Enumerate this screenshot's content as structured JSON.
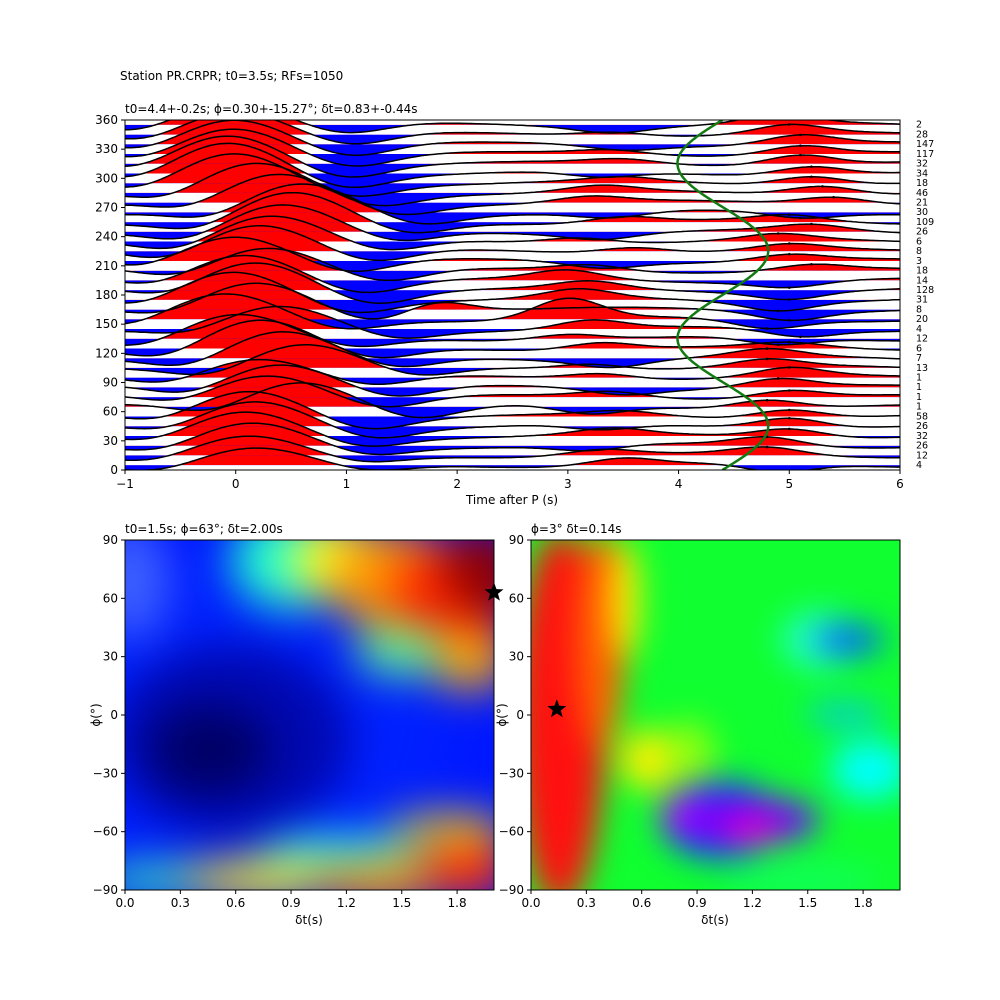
{
  "figure": {
    "suptitle": "Station PR.CRPR; t0=3.5s; RFs=1050"
  },
  "chart_data": [
    {
      "id": "top",
      "type": "line",
      "subtitle": "t0=4.4+-0.2s; ϕ=0.30+-15.27°; δt=0.83+-0.44s",
      "xlabel": "Time after P (s)",
      "xlim": [
        -1,
        6
      ],
      "ylim": [
        0,
        360
      ],
      "xticks": [
        -1,
        0,
        1,
        2,
        3,
        4,
        5,
        6
      ],
      "yticks": [
        0,
        30,
        60,
        90,
        120,
        150,
        180,
        210,
        240,
        270,
        300,
        330,
        360
      ],
      "traces": [
        {
          "baz": 5,
          "count": "4",
          "p1": 0.15,
          "a1": 0.55,
          "p2": 3.5,
          "a2": 0.25,
          "p3": 4.9,
          "a3": -0.3
        },
        {
          "baz": 15,
          "count": "12",
          "p1": 0.1,
          "a1": 0.6,
          "p2": 3.3,
          "a2": 0.2,
          "p3": 4.8,
          "a3": 0.25
        },
        {
          "baz": 25,
          "count": "26",
          "p1": 0.15,
          "a1": 0.7,
          "p2": 3.2,
          "a2": -0.2,
          "p3": 4.8,
          "a3": 0.3
        },
        {
          "baz": 35,
          "count": "32",
          "p1": 0.1,
          "a1": 0.75,
          "p2": 3.4,
          "a2": 0.2,
          "p3": 5.0,
          "a3": 0.3
        },
        {
          "baz": 45,
          "count": "26",
          "p1": 0.2,
          "a1": 0.8,
          "p2": 3.3,
          "a2": -0.2,
          "p3": 5.0,
          "a3": 0.35
        },
        {
          "baz": 55,
          "count": "58",
          "p1": 0.15,
          "a1": 0.85,
          "p2": 3.5,
          "a2": 0.15,
          "p3": 5.0,
          "a3": 0.3
        },
        {
          "baz": 65,
          "count": "1",
          "p1": 0.6,
          "a1": 0.9,
          "p2": 3.2,
          "a2": -0.3,
          "p3": 4.8,
          "a3": 0.3
        },
        {
          "baz": 75,
          "count": "1",
          "p1": 0.3,
          "a1": 0.8,
          "p2": 3.4,
          "a2": 0.2,
          "p3": 5.0,
          "a3": 0.25
        },
        {
          "baz": 85,
          "count": "1",
          "p1": 0.4,
          "a1": 0.85,
          "p2": 3.5,
          "a2": -0.2,
          "p3": 4.9,
          "a3": 0.3
        },
        {
          "baz": 95,
          "count": "1",
          "p1": 0.2,
          "a1": 0.7,
          "p2": 3.3,
          "a2": 0.2,
          "p3": 5.0,
          "a3": 0.3
        },
        {
          "baz": 105,
          "count": "13",
          "p1": 0.6,
          "a1": 0.8,
          "p2": 3.2,
          "a2": 0.2,
          "p3": 4.8,
          "a3": 0.25
        },
        {
          "baz": 115,
          "count": "7",
          "p1": 0.4,
          "a1": 0.9,
          "p2": 3.4,
          "a2": -0.25,
          "p3": 4.8,
          "a3": 0.25
        },
        {
          "baz": 125,
          "count": "6",
          "p1": 0.2,
          "a1": 0.95,
          "p2": 3.3,
          "a2": 0.25,
          "p3": 5.0,
          "a3": 0.15
        },
        {
          "baz": 135,
          "count": "12",
          "p1": 0.0,
          "a1": 0.8,
          "p2": 3.0,
          "a2": 0.2,
          "p3": 4.9,
          "a3": -0.25
        },
        {
          "baz": 145,
          "count": "4",
          "p1": 0.4,
          "a1": 0.7,
          "p2": 3.2,
          "a2": 0.3,
          "p3": 5.1,
          "a3": -0.25
        },
        {
          "baz": 155,
          "count": "20",
          "p1": -0.1,
          "a1": 0.8,
          "p2": 3.0,
          "a2": 0.7,
          "p3": 4.8,
          "a3": -0.3
        },
        {
          "baz": 165,
          "count": "8",
          "p1": 0.2,
          "a1": 0.85,
          "p2": 1.8,
          "a2": 0.4,
          "p3": 5.0,
          "a3": -0.3
        },
        {
          "baz": 175,
          "count": "31",
          "p1": 0.0,
          "a1": 0.9,
          "p2": 3.1,
          "a2": 0.3,
          "p3": 4.9,
          "a3": -0.3
        },
        {
          "baz": 185,
          "count": "128",
          "p1": 0.2,
          "a1": 0.95,
          "p2": 3.2,
          "a2": 0.25,
          "p3": 5.0,
          "a3": -0.25
        },
        {
          "baz": 195,
          "count": "14",
          "p1": 0.1,
          "a1": 0.9,
          "p2": 3.0,
          "a2": 0.3,
          "p3": 5.0,
          "a3": -0.2
        },
        {
          "baz": 205,
          "count": "18",
          "p1": 0.3,
          "a1": 0.85,
          "p2": 3.2,
          "a2": 0.2,
          "p3": 5.2,
          "a3": 0.2
        },
        {
          "baz": 215,
          "count": "3",
          "p1": 0.0,
          "a1": 0.9,
          "p2": 3.3,
          "a2": -0.2,
          "p3": 5.0,
          "a3": 0.2
        },
        {
          "baz": 225,
          "count": "8",
          "p1": 0.2,
          "a1": 0.95,
          "p2": 3.6,
          "a2": 0.2,
          "p3": 5.0,
          "a3": 0.2
        },
        {
          "baz": 235,
          "count": "6",
          "p1": 0.3,
          "a1": 0.9,
          "p2": 3.1,
          "a2": 0.2,
          "p3": 4.9,
          "a3": 0.2
        },
        {
          "baz": 245,
          "count": "26",
          "p1": 0.4,
          "a1": 0.9,
          "p2": 3.3,
          "a2": -0.2,
          "p3": 5.2,
          "a3": 0.2
        },
        {
          "baz": 255,
          "count": "109",
          "p1": 0.5,
          "a1": 0.95,
          "p2": 3.5,
          "a2": 0.2,
          "p3": 5.0,
          "a3": 0.2
        },
        {
          "baz": 265,
          "count": "30",
          "p1": 0.6,
          "a1": 0.9,
          "p2": 3.4,
          "a2": -0.2,
          "p3": 5.1,
          "a3": -0.2
        },
        {
          "baz": 275,
          "count": "21",
          "p1": 0.4,
          "a1": 0.9,
          "p2": 3.2,
          "a2": 0.2,
          "p3": 5.4,
          "a3": 0.25
        },
        {
          "baz": 285,
          "count": "46",
          "p1": 0.2,
          "a1": 0.95,
          "p2": 3.3,
          "a2": 0.2,
          "p3": 5.3,
          "a3": 0.3
        },
        {
          "baz": 295,
          "count": "18",
          "p1": 0.0,
          "a1": 0.95,
          "p2": 3.5,
          "a2": 0.15,
          "p3": 5.2,
          "a3": 0.3
        },
        {
          "baz": 305,
          "count": "34",
          "p1": -0.05,
          "a1": 1.0,
          "p2": 3.3,
          "a2": -0.2,
          "p3": 5.2,
          "a3": 0.3
        },
        {
          "baz": 315,
          "count": "32",
          "p1": -0.05,
          "a1": 0.95,
          "p2": 3.5,
          "a2": 0.15,
          "p3": 5.1,
          "a3": 0.35
        },
        {
          "baz": 325,
          "count": "117",
          "p1": 0.0,
          "a1": 0.9,
          "p2": 3.4,
          "a2": 0.15,
          "p3": 5.1,
          "a3": 0.3
        },
        {
          "baz": 335,
          "count": "147",
          "p1": 0.0,
          "a1": 0.9,
          "p2": 3.5,
          "a2": -0.15,
          "p3": 5.1,
          "a3": 0.3
        },
        {
          "baz": 345,
          "count": "28",
          "p1": 0.0,
          "a1": 0.85,
          "p2": 3.4,
          "a2": 0.15,
          "p3": 5.0,
          "a3": 0.3
        },
        {
          "baz": 355,
          "count": "2",
          "p1": -0.05,
          "a1": 0.8,
          "p2": 3.4,
          "a2": -0.2,
          "p3": 4.9,
          "a3": 0.3
        }
      ],
      "green_curve": {
        "color": "#127b12",
        "base_time": 4.4,
        "amplitude": 0.41,
        "phase_deg": 0.3,
        "periods": 2
      },
      "colors": {
        "positive": "#ff0000",
        "negative": "#0000ff",
        "line": "#000000"
      }
    },
    {
      "id": "bottom-left",
      "type": "heatmap",
      "subtitle": "t0=1.5s; ϕ=63°; δt=2.00s",
      "xlabel": "δt(s)",
      "ylabel": "ϕ(°)",
      "xlim": [
        0,
        2
      ],
      "ylim": [
        -90,
        90
      ],
      "xticks": [
        "0.0",
        "0.3",
        "0.6",
        "0.9",
        "1.2",
        "1.5",
        "1.8"
      ],
      "yticks": [
        "-90",
        "-60",
        "-30",
        "0",
        "30",
        "60",
        "90"
      ],
      "colormap": "jet",
      "marker": {
        "dt": 2.0,
        "phi": 63,
        "symbol": "star"
      }
    },
    {
      "id": "bottom-right",
      "type": "heatmap",
      "subtitle": "ϕ=3° δt=0.14s",
      "xlabel": "δt(s)",
      "ylabel": "ϕ(°)",
      "xlim": [
        0,
        2
      ],
      "ylim": [
        -90,
        90
      ],
      "xticks": [
        "0.0",
        "0.3",
        "0.6",
        "0.9",
        "1.2",
        "1.5",
        "1.8"
      ],
      "yticks": [
        "-90",
        "-60",
        "-30",
        "0",
        "30",
        "60",
        "90"
      ],
      "colormap": "gist_rainbow",
      "marker": {
        "dt": 0.14,
        "phi": 3,
        "symbol": "star"
      }
    }
  ]
}
